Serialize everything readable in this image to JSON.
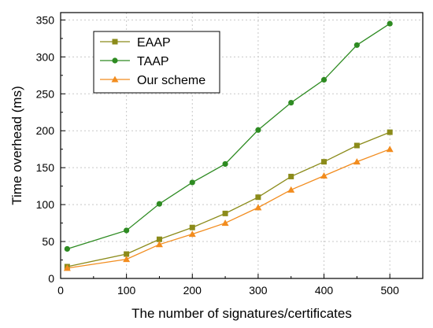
{
  "chart_data": {
    "type": "line",
    "xlabel": "The number of signatures/certificates",
    "ylabel": "Time overhead (ms)",
    "xlim": [
      0,
      550
    ],
    "ylim": [
      0,
      360
    ],
    "x_ticks": [
      0,
      100,
      200,
      300,
      400,
      500
    ],
    "y_ticks": [
      0,
      50,
      100,
      150,
      200,
      250,
      300,
      350
    ],
    "grid": true,
    "legend_position": "top-left",
    "x": [
      10,
      100,
      150,
      200,
      250,
      300,
      350,
      400,
      450,
      500
    ],
    "series": [
      {
        "name": "EAAP",
        "color": "#8b8b1a",
        "marker": "square",
        "values": [
          16,
          33,
          53,
          69,
          88,
          110,
          138,
          158,
          180,
          198
        ]
      },
      {
        "name": "TAAP",
        "color": "#2e8b22",
        "marker": "circle",
        "values": [
          40,
          65,
          101,
          130,
          155,
          201,
          238,
          269,
          316,
          345
        ]
      },
      {
        "name": "Our scheme",
        "color": "#f28c1e",
        "marker": "triangle",
        "values": [
          14,
          26,
          46,
          60,
          75,
          96,
          120,
          139,
          158,
          175
        ]
      }
    ]
  }
}
